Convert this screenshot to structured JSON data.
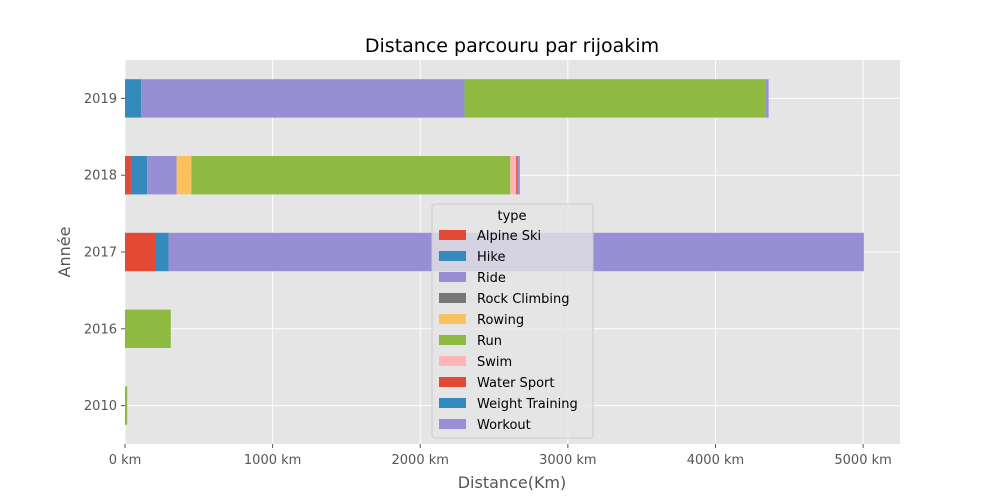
{
  "chart_data": {
    "type": "bar",
    "orientation": "horizontal",
    "stacked": true,
    "title": "Distance parcouru par rijoakim",
    "xlabel": "Distance(Km)",
    "ylabel": "Année",
    "xlim": [
      0,
      5250
    ],
    "x_ticks": [
      0,
      1000,
      2000,
      3000,
      4000,
      5000
    ],
    "x_tick_labels": [
      "0 km",
      "1000 km",
      "2000 km",
      "3000 km",
      "4000 km",
      "5000 km"
    ],
    "categories": [
      "2010",
      "2016",
      "2017",
      "2018",
      "2019"
    ],
    "grid": true,
    "legend_title": "type",
    "legend_placement": "lower-center",
    "series": [
      {
        "name": "Alpine Ski",
        "color": "#E24A33",
        "values": [
          0,
          0,
          0,
          40,
          0
        ]
      },
      {
        "name": "Hike",
        "color": "#348ABD",
        "values": [
          0,
          0,
          0,
          110,
          110
        ]
      },
      {
        "name": "Ride",
        "color": "#988ED5",
        "values": [
          0,
          0,
          0,
          200,
          2190
        ]
      },
      {
        "name": "Rock Climbing",
        "color": "#777777",
        "values": [
          0,
          0,
          0,
          0,
          0
        ]
      },
      {
        "name": "Rowing",
        "color": "#FBC15E",
        "values": [
          0,
          0,
          0,
          100,
          0
        ]
      },
      {
        "name": "Run",
        "color": "#8EBA42",
        "values": [
          15,
          310,
          0,
          2160,
          2040
        ]
      },
      {
        "name": "Swim",
        "color": "#FFB5B8",
        "values": [
          0,
          0,
          0,
          40,
          0
        ]
      },
      {
        "name": "Water Sport",
        "color": "#E24A33",
        "values": [
          0,
          0,
          210,
          10,
          0
        ]
      },
      {
        "name": "Weight Training",
        "color": "#348ABD",
        "values": [
          0,
          0,
          85,
          0,
          0
        ]
      },
      {
        "name": "Workout",
        "color": "#988ED5",
        "values": [
          0,
          0,
          4710,
          15,
          20
        ]
      }
    ]
  }
}
